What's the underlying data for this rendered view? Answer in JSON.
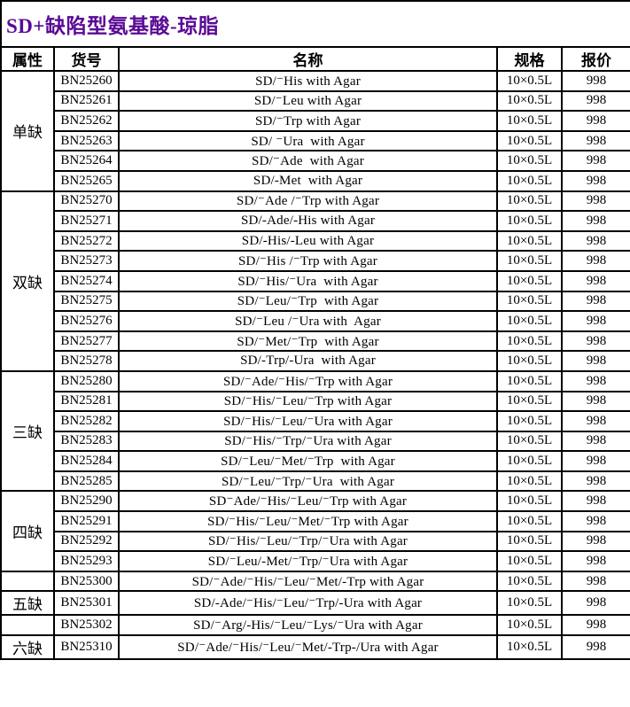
{
  "title": {
    "text": "SD+缺陷型氨基酸-琼脂",
    "color": "#5a0a96"
  },
  "table": {
    "columns": [
      "属性",
      "货号",
      "名称",
      "规格",
      "报价"
    ],
    "groups": [
      {
        "label": "单缺",
        "merged": true,
        "rows": [
          {
            "code": "BN25260",
            "name": "SD/⁻His with Agar",
            "spec": "10×0.5L",
            "price": "998"
          },
          {
            "code": "BN25261",
            "name": "SD/⁻Leu with Agar",
            "spec": "10×0.5L",
            "price": "998"
          },
          {
            "code": "BN25262",
            "name": "SD/⁻Trp with Agar",
            "spec": "10×0.5L",
            "price": "998"
          },
          {
            "code": "BN25263",
            "name": "SD/ ⁻Ura  with Agar",
            "spec": "10×0.5L",
            "price": "998"
          },
          {
            "code": "BN25264",
            "name": "SD/⁻Ade  with Agar",
            "spec": "10×0.5L",
            "price": "998"
          },
          {
            "code": "BN25265",
            "name": "SD/-Met  with Agar",
            "spec": "10×0.5L",
            "price": "998"
          }
        ]
      },
      {
        "label": "双缺",
        "merged": true,
        "rows": [
          {
            "code": "BN25270",
            "name": "SD/⁻Ade /⁻Trp with Agar",
            "spec": "10×0.5L",
            "price": "998"
          },
          {
            "code": "BN25271",
            "name": "SD/-Ade/-His with Agar",
            "spec": "10×0.5L",
            "price": "998"
          },
          {
            "code": "BN25272",
            "name": "SD/-His/-Leu with Agar",
            "spec": "10×0.5L",
            "price": "998"
          },
          {
            "code": "BN25273",
            "name": "SD/⁻His /⁻Trp with Agar",
            "spec": "10×0.5L",
            "price": "998"
          },
          {
            "code": "BN25274",
            "name": "SD/⁻His/⁻Ura  with Agar",
            "spec": "10×0.5L",
            "price": "998"
          },
          {
            "code": "BN25275",
            "name": "SD/⁻Leu/⁻Trp  with Agar",
            "spec": "10×0.5L",
            "price": "998"
          },
          {
            "code": "BN25276",
            "name": "SD/⁻Leu /⁻Ura with  Agar",
            "spec": "10×0.5L",
            "price": "998"
          },
          {
            "code": "BN25277",
            "name": "SD/⁻Met/⁻Trp  with Agar",
            "spec": "10×0.5L",
            "price": "998"
          },
          {
            "code": "BN25278",
            "name": "SD/-Trp/-Ura  with Agar",
            "spec": "10×0.5L",
            "price": "998"
          }
        ]
      },
      {
        "label": "三缺",
        "merged": true,
        "rows": [
          {
            "code": "BN25280",
            "name": "SD/⁻Ade/⁻His/⁻Trp with Agar",
            "spec": "10×0.5L",
            "price": "998"
          },
          {
            "code": "BN25281",
            "name": "SD/⁻His/⁻Leu/⁻Trp with Agar",
            "spec": "10×0.5L",
            "price": "998"
          },
          {
            "code": "BN25282",
            "name": "SD/⁻His/⁻Leu/⁻Ura with Agar",
            "spec": "10×0.5L",
            "price": "998"
          },
          {
            "code": "BN25283",
            "name": "SD/⁻His/⁻Trp/⁻Ura with Agar",
            "spec": "10×0.5L",
            "price": "998"
          },
          {
            "code": "BN25284",
            "name": "SD/⁻Leu/⁻Met/⁻Trp  with Agar",
            "spec": "10×0.5L",
            "price": "998"
          },
          {
            "code": "BN25285",
            "name": "SD/⁻Leu/⁻Trp/⁻Ura  with Agar",
            "spec": "10×0.5L",
            "price": "998"
          }
        ]
      },
      {
        "label": "四缺",
        "merged": true,
        "rows": [
          {
            "code": "BN25290",
            "name": "SD⁻Ade/⁻His/⁻Leu/⁻Trp with Agar",
            "spec": "10×0.5L",
            "price": "998"
          },
          {
            "code": "BN25291",
            "name": "SD/⁻His/⁻Leu/⁻Met/⁻Trp with Agar",
            "spec": "10×0.5L",
            "price": "998"
          },
          {
            "code": "BN25292",
            "name": "SD/⁻His/⁻Leu/⁻Trp/⁻Ura with Agar",
            "spec": "10×0.5L",
            "price": "998"
          },
          {
            "code": "BN25293",
            "name": "SD/⁻Leu/-Met/⁻Trp/⁻Ura with Agar",
            "spec": "10×0.5L",
            "price": "998"
          }
        ]
      },
      {
        "label": "五缺",
        "merged": false,
        "label_row_index": 1,
        "rows": [
          {
            "code": "BN25300",
            "name": "SD/⁻Ade/⁻His/⁻Leu/⁻Met/-Trp with Agar",
            "spec": "10×0.5L",
            "price": "998"
          },
          {
            "code": "BN25301",
            "name": "SD/-Ade/⁻His/⁻Leu/⁻Trp/-Ura with Agar",
            "spec": "10×0.5L",
            "price": "998"
          },
          {
            "code": "BN25302",
            "name": "SD/⁻Arg/-His/⁻Leu/⁻Lys/⁻Ura with Agar",
            "spec": "10×0.5L",
            "price": "998"
          }
        ]
      },
      {
        "label": "六缺",
        "merged": true,
        "rows": [
          {
            "code": "BN25310",
            "name": "SD/⁻Ade/⁻His/⁻Leu/⁻Met/-Trp-/Ura with Agar",
            "spec": "10×0.5L",
            "price": "998"
          }
        ]
      }
    ]
  }
}
